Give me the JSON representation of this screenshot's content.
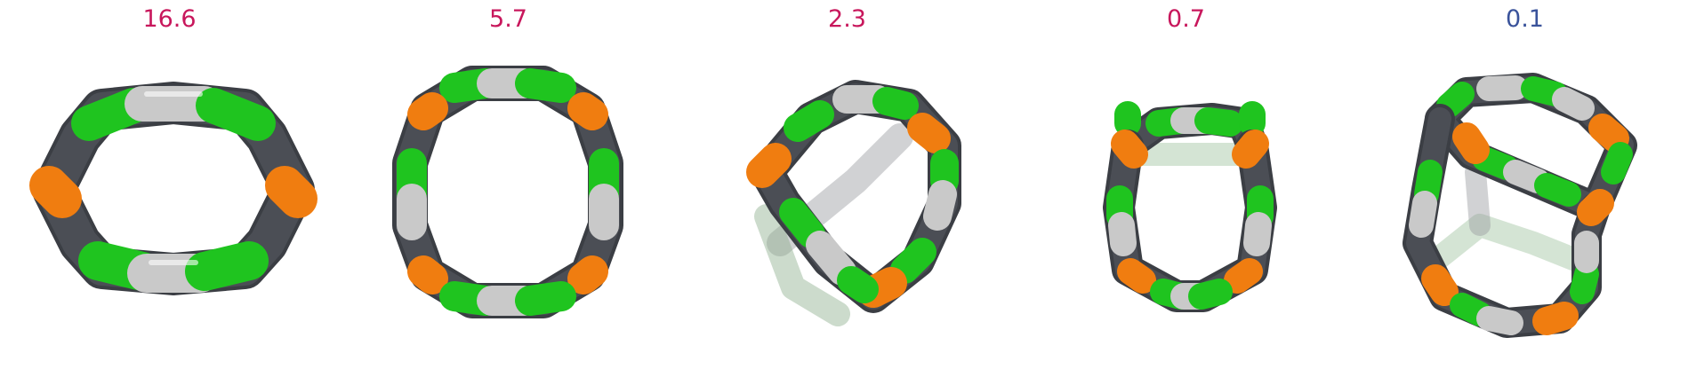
{
  "panels": [
    {
      "label": "16.6",
      "label_color": "#c8175c"
    },
    {
      "label": "5.7",
      "label_color": "#c8175c"
    },
    {
      "label": "2.3",
      "label_color": "#c8175c"
    },
    {
      "label": "0.7",
      "label_color": "#c8175c"
    },
    {
      "label": "0.1",
      "label_color": "#3a539b"
    }
  ],
  "colors": {
    "green": "#1fc41f",
    "silver": "#c9c9c9",
    "dark": "#4b4e55",
    "orange": "#f07d10"
  }
}
